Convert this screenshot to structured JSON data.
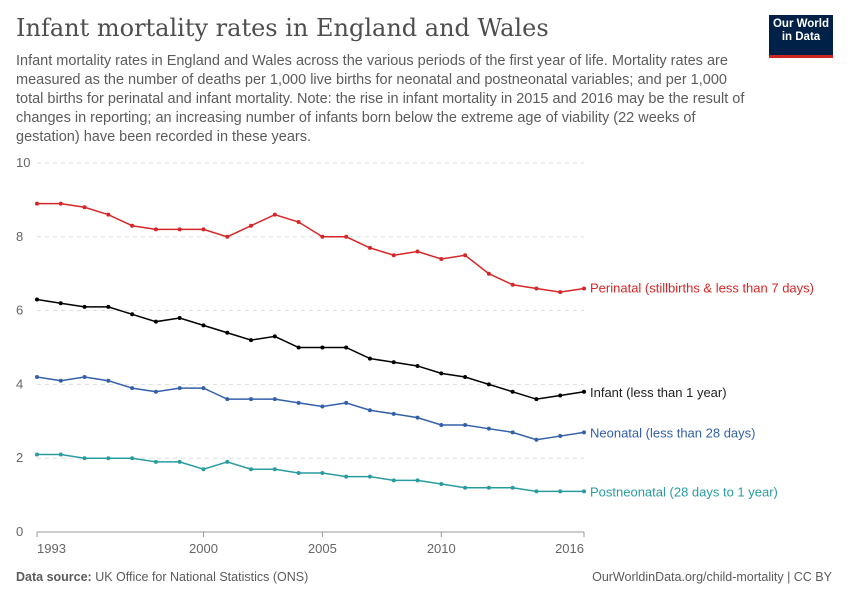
{
  "title": "Infant mortality rates in England and Wales",
  "subtitle": "Infant mortality rates in England and Wales across the various periods of the first year of life. Mortality rates are measured as the number of deaths per 1,000 live births for neonatal and postneonatal variables; and per 1,000 total births for perinatal and infant mortality. Note: the rise in infant mortality in 2015 and 2016 may be the result of changes in reporting; an increasing number of infants born below the extreme age of viability (22 weeks of gestation) have been recorded in these years.",
  "logo": "Our World in Data",
  "footer": {
    "source_label": "Data source:",
    "source": "UK Office for National Statistics (ONS)",
    "link": "OurWorldinData.org/child-mortality | CC BY"
  },
  "chart_data": {
    "type": "line",
    "x": [
      1993,
      1994,
      1995,
      1996,
      1997,
      1998,
      1999,
      2000,
      2001,
      2002,
      2003,
      2004,
      2005,
      2006,
      2007,
      2008,
      2009,
      2010,
      2011,
      2012,
      2013,
      2014,
      2015,
      2016
    ],
    "xticks": [
      1993,
      2000,
      2005,
      2010,
      2016
    ],
    "yticks": [
      0,
      2,
      4,
      6,
      8,
      10
    ],
    "ylim": [
      0,
      10
    ],
    "grid": "horizontal dashed",
    "legend": "right, inline labels",
    "series": [
      {
        "name": "Perinatal (stillbirths & less than 7 days)",
        "color": "#d62728",
        "values": [
          8.9,
          8.9,
          8.8,
          8.6,
          8.3,
          8.2,
          8.2,
          8.2,
          8.0,
          8.3,
          8.6,
          8.4,
          8.0,
          8.0,
          7.7,
          7.5,
          7.6,
          7.4,
          7.5,
          7.0,
          6.7,
          6.6,
          6.5,
          6.6
        ]
      },
      {
        "name": "Infant (less than 1 year)",
        "color": "#000000",
        "values": [
          6.3,
          6.2,
          6.1,
          6.1,
          5.9,
          5.7,
          5.8,
          5.6,
          5.4,
          5.2,
          5.3,
          5.0,
          5.0,
          5.0,
          4.7,
          4.6,
          4.5,
          4.3,
          4.2,
          4.0,
          3.8,
          3.6,
          3.7,
          3.8
        ]
      },
      {
        "name": "Neonatal (less than 28 days)",
        "color": "#3360a9",
        "values": [
          4.2,
          4.1,
          4.2,
          4.1,
          3.9,
          3.8,
          3.9,
          3.9,
          3.6,
          3.6,
          3.6,
          3.5,
          3.4,
          3.5,
          3.3,
          3.2,
          3.1,
          2.9,
          2.9,
          2.8,
          2.7,
          2.5,
          2.6,
          2.7
        ]
      },
      {
        "name": "Postneonatal (28 days to 1 year)",
        "color": "#2a9ca0",
        "values": [
          2.1,
          2.1,
          2.0,
          2.0,
          2.0,
          1.9,
          1.9,
          1.7,
          1.9,
          1.7,
          1.7,
          1.6,
          1.6,
          1.5,
          1.5,
          1.4,
          1.4,
          1.3,
          1.2,
          1.2,
          1.2,
          1.1,
          1.1,
          1.1
        ]
      }
    ]
  }
}
